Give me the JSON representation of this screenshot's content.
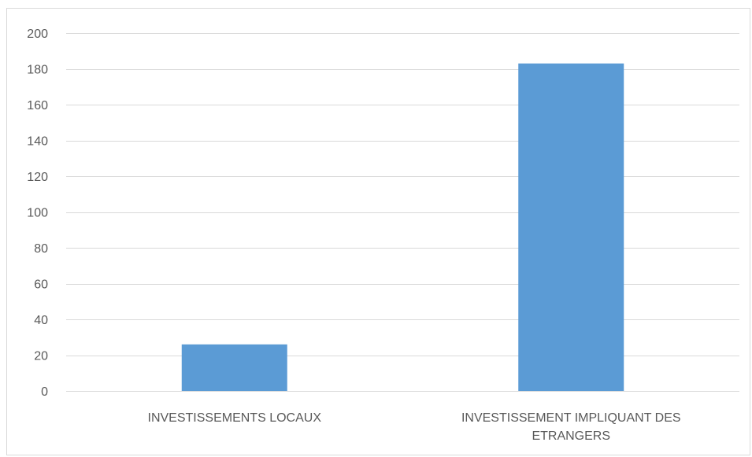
{
  "chart_data": {
    "type": "bar",
    "title": "",
    "xlabel": "",
    "ylabel": "",
    "categories": [
      [
        "INVESTISSEMENTS LOCAUX"
      ],
      [
        "INVESTISSEMENT IMPLIQUANT DES",
        "ETRANGERS"
      ]
    ],
    "values": [
      26,
      183
    ],
    "ylim": [
      0,
      200
    ],
    "yticks": [
      0,
      20,
      40,
      60,
      80,
      100,
      120,
      140,
      160,
      180,
      200
    ],
    "grid": true,
    "legend": "none",
    "colors": {
      "bar": "#5b9bd5",
      "grid": "#d9d9d9",
      "axis_text": "#595959"
    }
  }
}
